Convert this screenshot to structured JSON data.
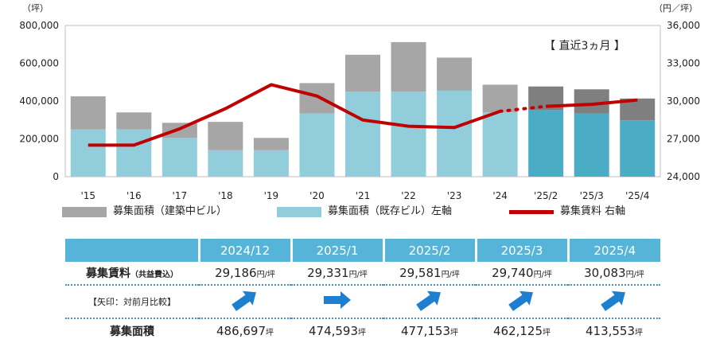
{
  "units": {
    "left": "（坪）",
    "right": "（円／坪）"
  },
  "annotation": "【 直近3ヵ月 】",
  "chart_data": {
    "type": "bar",
    "categories": [
      "'15",
      "'16",
      "'17",
      "'18",
      "'19",
      "'20",
      "'21",
      "'22",
      "'23",
      "'24",
      "'25/2",
      "'25/3",
      "'25/4"
    ],
    "series": [
      {
        "name": "募集面積（既存ビル）左軸",
        "stack": "area",
        "axis": "left",
        "values": [
          250000,
          250000,
          205000,
          140000,
          140000,
          335000,
          450000,
          450000,
          455000,
          340000,
          352000,
          335000,
          298000
        ]
      },
      {
        "name": "募集面積（建築中ビル）",
        "stack": "area",
        "axis": "left",
        "values": [
          175000,
          90000,
          80000,
          150000,
          65000,
          160000,
          195000,
          262000,
          175000,
          146697,
          125153,
          127125,
          115553
        ]
      },
      {
        "name": "募集賃料 右軸",
        "type": "line",
        "axis": "right",
        "values": [
          26500,
          26500,
          27800,
          29400,
          31300,
          30400,
          28500,
          28000,
          27900,
          29186,
          29581,
          29740,
          30083
        ]
      }
    ],
    "recent_categories": [
      "'25/2",
      "'25/3",
      "'25/4"
    ],
    "ylim": [
      0,
      800000
    ],
    "y2lim": [
      24000,
      36000
    ],
    "yticks": [
      "800,000",
      "600,000",
      "400,000",
      "200,000",
      "0"
    ],
    "y2ticks": [
      "36,000",
      "33,000",
      "30,000",
      "27,000",
      "24,000"
    ],
    "grid": false,
    "legend_position": "bottom",
    "colors": {
      "built": "#a6a6a6",
      "existing": "#92cddc",
      "existing_recent": "#4bacc6",
      "built_recent": "#7f7f7f",
      "rent_line": "#c00000"
    }
  },
  "legend": {
    "built": "募集面積（建築中ビル）",
    "existing": "募集面積（既存ビル）左軸",
    "rent": "募集賃料 右軸"
  },
  "table": {
    "months": [
      "2024/12",
      "2025/1",
      "2025/2",
      "2025/3",
      "2025/4"
    ],
    "rent_label": "募集賃料",
    "rent_label_sub": "（共益費込）",
    "rent_values": [
      "29,186",
      "29,331",
      "29,581",
      "29,740",
      "30,083"
    ],
    "rent_unit": "円/坪",
    "arrow_label": "【矢印：対前月比較】",
    "arrows": [
      "up-right",
      "right",
      "up-right",
      "up-right",
      "up-right"
    ],
    "area_label": "募集面積",
    "area_values": [
      "486,697",
      "474,593",
      "477,153",
      "462,125",
      "413,553"
    ],
    "area_unit": "坪",
    "colors": {
      "header": "#56b4d8",
      "arrow": "#1e7fd0"
    }
  }
}
